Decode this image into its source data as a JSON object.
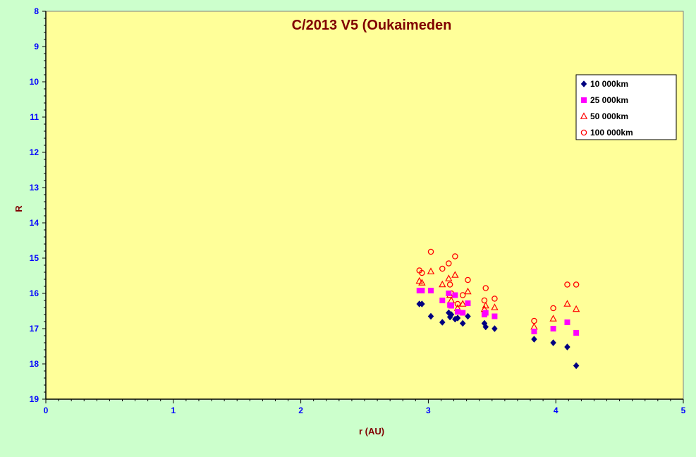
{
  "chart_data": {
    "type": "scatter",
    "title": "C/2013 V5 (Oukaimeden",
    "xlabel": "r (AU)",
    "ylabel": "R",
    "xlim": [
      0,
      5
    ],
    "ylim": [
      8,
      19
    ],
    "y_inverted": true,
    "x_ticks": [
      "0",
      "1",
      "2",
      "3",
      "4",
      "5"
    ],
    "y_ticks": [
      "8",
      "9",
      "10",
      "11",
      "12",
      "13",
      "14",
      "15",
      "16",
      "17",
      "18",
      "19"
    ],
    "grid": false,
    "legend_position": "top-right",
    "colors": {
      "plot_background": "#ffff99",
      "page_background": "#ccffcc",
      "axis_text": "#0000ff",
      "title_text": "#800000"
    },
    "series": [
      {
        "name": "10 000km",
        "marker": "diamond",
        "color": "#000080",
        "points": [
          [
            2.93,
            16.3
          ],
          [
            2.95,
            16.3
          ],
          [
            3.02,
            16.65
          ],
          [
            3.11,
            16.82
          ],
          [
            3.16,
            16.55
          ],
          [
            3.17,
            16.67
          ],
          [
            3.18,
            16.6
          ],
          [
            3.21,
            16.73
          ],
          [
            3.23,
            16.7
          ],
          [
            3.27,
            16.85
          ],
          [
            3.31,
            16.65
          ],
          [
            3.44,
            16.85
          ],
          [
            3.45,
            16.95
          ],
          [
            3.52,
            17.0
          ],
          [
            3.83,
            17.3
          ],
          [
            3.98,
            17.4
          ],
          [
            4.09,
            17.52
          ],
          [
            4.16,
            18.05
          ]
        ]
      },
      {
        "name": "25 000km",
        "marker": "square",
        "color": "#ff00ff",
        "points": [
          [
            2.93,
            15.92
          ],
          [
            2.95,
            15.92
          ],
          [
            3.02,
            15.92
          ],
          [
            3.11,
            16.2
          ],
          [
            3.16,
            16.0
          ],
          [
            3.17,
            16.33
          ],
          [
            3.18,
            16.35
          ],
          [
            3.21,
            16.05
          ],
          [
            3.23,
            16.52
          ],
          [
            3.27,
            16.55
          ],
          [
            3.31,
            16.28
          ],
          [
            3.44,
            16.6
          ],
          [
            3.45,
            16.55
          ],
          [
            3.52,
            16.65
          ],
          [
            3.83,
            17.08
          ],
          [
            3.98,
            17.0
          ],
          [
            4.09,
            16.82
          ],
          [
            4.16,
            17.12
          ]
        ]
      },
      {
        "name": "50 000km",
        "marker": "triangle",
        "color": "#ff0000",
        "points": [
          [
            2.93,
            15.65
          ],
          [
            2.95,
            15.7
          ],
          [
            3.02,
            15.38
          ],
          [
            3.11,
            15.75
          ],
          [
            3.16,
            15.58
          ],
          [
            3.17,
            16.05
          ],
          [
            3.18,
            16.2
          ],
          [
            3.21,
            15.48
          ],
          [
            3.23,
            16.42
          ],
          [
            3.27,
            16.3
          ],
          [
            3.31,
            15.95
          ],
          [
            3.44,
            16.45
          ],
          [
            3.45,
            16.35
          ],
          [
            3.52,
            16.4
          ],
          [
            3.83,
            16.95
          ],
          [
            3.98,
            16.72
          ],
          [
            4.09,
            16.3
          ],
          [
            4.16,
            16.45
          ]
        ]
      },
      {
        "name": "100 000km",
        "marker": "circle",
        "color": "#ff0000",
        "points": [
          [
            2.93,
            15.35
          ],
          [
            2.95,
            15.42
          ],
          [
            3.02,
            14.82
          ],
          [
            3.11,
            15.3
          ],
          [
            3.16,
            15.15
          ],
          [
            3.17,
            15.75
          ],
          [
            3.18,
            16.0
          ],
          [
            3.21,
            14.95
          ],
          [
            3.23,
            16.3
          ],
          [
            3.27,
            16.05
          ],
          [
            3.31,
            15.62
          ],
          [
            3.44,
            16.2
          ],
          [
            3.45,
            15.85
          ],
          [
            3.52,
            16.15
          ],
          [
            3.83,
            16.78
          ],
          [
            3.98,
            16.42
          ],
          [
            4.09,
            15.75
          ],
          [
            4.16,
            15.75
          ]
        ]
      }
    ]
  }
}
